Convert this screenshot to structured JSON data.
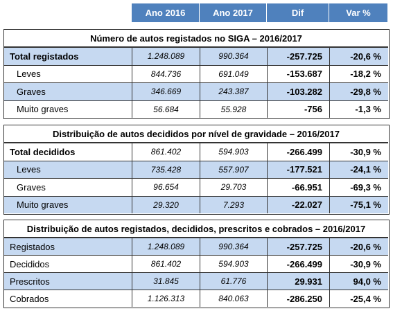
{
  "header": [
    "Ano 2016",
    "Ano 2017",
    "Dif",
    "Var %"
  ],
  "sections": [
    {
      "title": "Número de autos registados no SIGA – 2016/2017",
      "rows": [
        [
          "Total registados",
          "1.248.089",
          "990.364",
          "-257.725",
          "-20,6 %"
        ],
        [
          "Leves",
          "844.736",
          "691.049",
          "-153.687",
          "-18,2 %"
        ],
        [
          "Graves",
          "346.669",
          "243.387",
          "-103.282",
          "-29,8 %"
        ],
        [
          "Muito graves",
          "56.684",
          "55.928",
          "-756",
          "-1,3 %"
        ]
      ]
    },
    {
      "title": "Distribuição de autos decididos por nível de gravidade – 2016/2017",
      "rows": [
        [
          "Total decididos",
          "861.402",
          "594.903",
          "-266.499",
          "-30,9 %"
        ],
        [
          "Leves",
          "735.428",
          "557.907",
          "-177.521",
          "-24,1 %"
        ],
        [
          "Graves",
          "96.654",
          "29.703",
          "-66.951",
          "-69,3 %"
        ],
        [
          "Muito graves",
          "29.320",
          "7.293",
          "-22.027",
          "-75,1 %"
        ]
      ]
    },
    {
      "title": "Distribuição de autos registados, decididos, prescritos e cobrados – 2016/2017",
      "rows": [
        [
          "Registados",
          "1.248.089",
          "990.364",
          "-257.725",
          "-20,6 %"
        ],
        [
          "Decididos",
          "861.402",
          "594.903",
          "-266.499",
          "-30,9 %"
        ],
        [
          "Prescritos",
          "31.845",
          "61.776",
          "29.931",
          "94,0 %"
        ],
        [
          "Cobrados",
          "1.126.313",
          "840.063",
          "-286.250",
          "-25,4 %"
        ]
      ]
    }
  ]
}
